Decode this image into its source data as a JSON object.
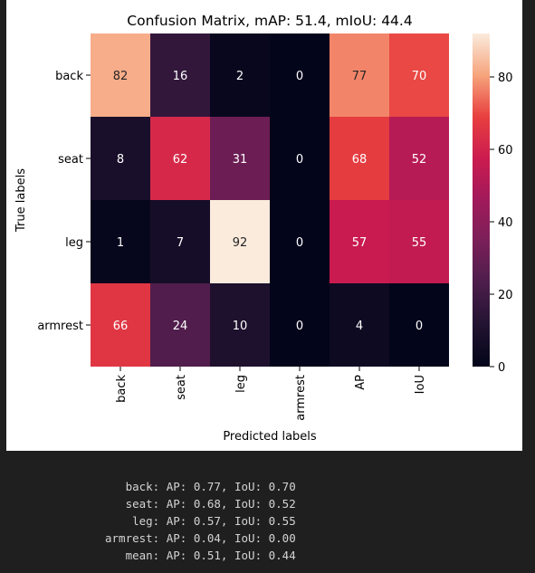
{
  "chart_data": {
    "type": "heatmap",
    "title": "Confusion Matrix, mAP:  51.4, mIoU:  44.4",
    "xlabel": "Predicted labels",
    "ylabel": "True labels",
    "x_categories": [
      "back",
      "seat",
      "leg",
      "armrest",
      "AP",
      "IoU"
    ],
    "y_categories": [
      "back",
      "seat",
      "leg",
      "armrest"
    ],
    "values": [
      [
        82,
        16,
        2,
        0,
        77,
        70
      ],
      [
        8,
        62,
        31,
        0,
        68,
        52
      ],
      [
        1,
        7,
        92,
        0,
        57,
        55
      ],
      [
        66,
        24,
        10,
        0,
        4,
        0
      ]
    ],
    "colorbar": {
      "min": 0,
      "max": 92,
      "ticks": [
        0,
        20,
        40,
        60,
        80
      ]
    },
    "colormap": "rocket"
  },
  "output": {
    "lines": [
      "   back: AP: 0.77, IoU: 0.70",
      "   seat: AP: 0.68, IoU: 0.52",
      "    leg: AP: 0.57, IoU: 0.55",
      "armrest: AP: 0.04, IoU: 0.00",
      "   mean: AP: 0.51, IoU: 0.44"
    ]
  }
}
